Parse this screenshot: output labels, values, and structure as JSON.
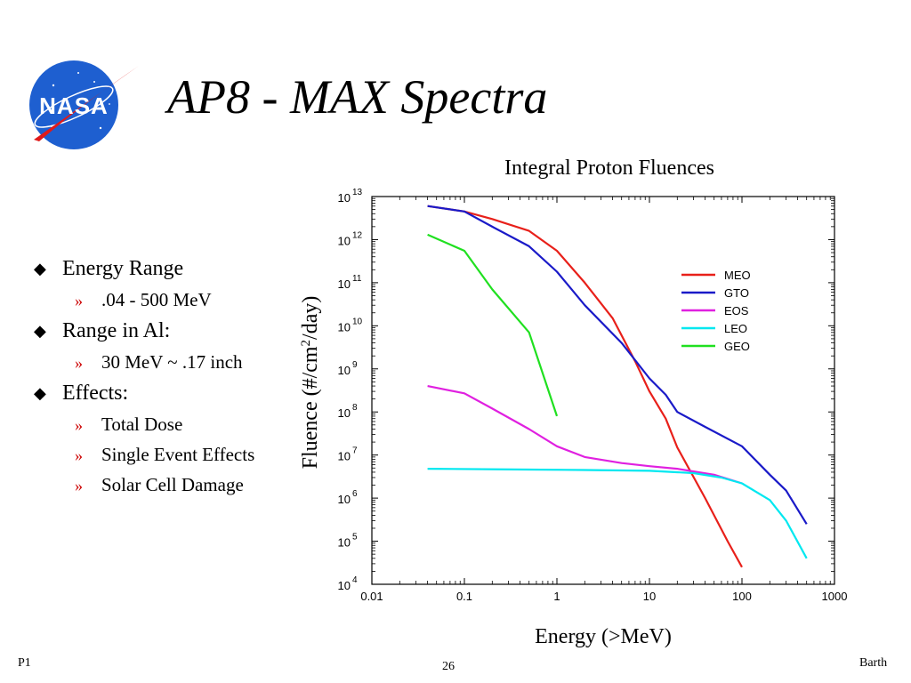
{
  "slide": {
    "title": "AP8 - MAX Spectra",
    "logo_text": "NASA",
    "footer_left": "P1",
    "footer_right": "Barth",
    "page_number": "26"
  },
  "bullets": [
    {
      "text": "Energy Range",
      "sub": [
        ".04 - 500 MeV"
      ]
    },
    {
      "text": "Range in Al:",
      "sub": [
        "30 MeV ~ .17 inch"
      ]
    },
    {
      "text": "Effects:",
      "sub": [
        "Total Dose",
        "Single Event Effects",
        "Solar Cell Damage"
      ]
    }
  ],
  "chart_data": {
    "type": "line",
    "title": "Integral Proton Fluences",
    "xlabel": "Energy (>MeV)",
    "ylabel_parts": [
      "Fluence (#/cm",
      "2",
      "/day)"
    ],
    "x_scale": "log",
    "y_scale": "log",
    "xlim": [
      0.01,
      1000
    ],
    "ylim": [
      10000,
      10000000000000
    ],
    "x_ticks": [
      0.01,
      0.1,
      1,
      10,
      100,
      1000
    ],
    "x_tick_labels": [
      "0.01",
      "0.1",
      "1",
      "10",
      "100",
      "1000"
    ],
    "y_ticks": [
      4,
      5,
      6,
      7,
      8,
      9,
      10,
      11,
      12,
      13
    ],
    "y_tick_base": "10",
    "legend_position": "right",
    "series": [
      {
        "name": "MEO",
        "color": "#e8201a",
        "points": [
          [
            0.04,
            6000000000000.0
          ],
          [
            0.1,
            4500000000000.0
          ],
          [
            0.2,
            3000000000000.0
          ],
          [
            0.5,
            1600000000000.0
          ],
          [
            1,
            550000000000.0
          ],
          [
            2,
            100000000000.0
          ],
          [
            4,
            15000000000.0
          ],
          [
            7,
            1500000000.0
          ],
          [
            10,
            300000000.0
          ],
          [
            15,
            70000000.0
          ],
          [
            20,
            15000000.0
          ],
          [
            40,
            1000000.0
          ],
          [
            70,
            100000.0
          ],
          [
            100,
            25000.0
          ]
        ]
      },
      {
        "name": "GTO",
        "color": "#1a1ac8",
        "points": [
          [
            0.04,
            6000000000000.0
          ],
          [
            0.1,
            4500000000000.0
          ],
          [
            0.2,
            2000000000000.0
          ],
          [
            0.5,
            700000000000.0
          ],
          [
            1,
            180000000000.0
          ],
          [
            2,
            30000000000.0
          ],
          [
            5,
            4000000000.0
          ],
          [
            10,
            600000000.0
          ],
          [
            15,
            250000000.0
          ],
          [
            20,
            100000000.0
          ],
          [
            40,
            45000000.0
          ],
          [
            100,
            16000000.0
          ],
          [
            200,
            3500000.0
          ],
          [
            300,
            1500000.0
          ],
          [
            500,
            250000.0
          ]
        ]
      },
      {
        "name": "EOS",
        "color": "#e020e0",
        "points": [
          [
            0.04,
            400000000.0
          ],
          [
            0.1,
            270000000.0
          ],
          [
            0.2,
            120000000.0
          ],
          [
            0.5,
            40000000.0
          ],
          [
            1,
            16000000.0
          ],
          [
            2,
            9000000.0
          ],
          [
            5,
            6500000.0
          ],
          [
            10,
            5500000.0
          ],
          [
            20,
            4800000.0
          ],
          [
            50,
            3500000.0
          ],
          [
            100,
            2200000.0
          ]
        ]
      },
      {
        "name": "LEO",
        "color": "#00e8f0",
        "points": [
          [
            0.04,
            4800000.0
          ],
          [
            0.5,
            4600000.0
          ],
          [
            2,
            4500000.0
          ],
          [
            10,
            4300000.0
          ],
          [
            30,
            3800000.0
          ],
          [
            60,
            3000000.0
          ],
          [
            100,
            2200000.0
          ],
          [
            200,
            900000.0
          ],
          [
            300,
            300000.0
          ],
          [
            500,
            40000.0
          ]
        ]
      },
      {
        "name": "GEO",
        "color": "#20e020",
        "points": [
          [
            0.04,
            1300000000000.0
          ],
          [
            0.1,
            550000000000.0
          ],
          [
            0.2,
            70000000000.0
          ],
          [
            0.5,
            7000000000.0
          ],
          [
            1,
            80000000.0
          ]
        ]
      }
    ]
  }
}
